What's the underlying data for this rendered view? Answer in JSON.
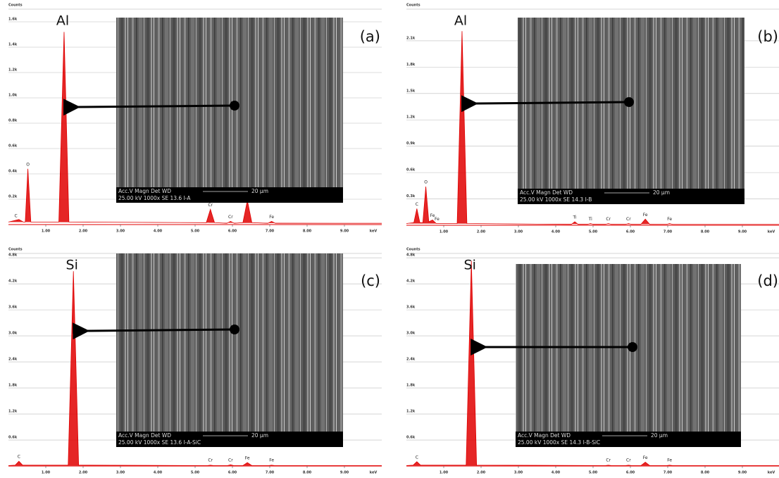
{
  "chart_data": [
    {
      "type": "line",
      "label": "(a)",
      "ylabel": "Counts",
      "xlabel": "keV",
      "color": "#e00000",
      "grid": true,
      "xlim": [
        0,
        10
      ],
      "ylim": [
        0,
        1700
      ],
      "xticks": [
        {
          "value": 1,
          "label": "1.00"
        },
        {
          "value": 2,
          "label": "2.00"
        },
        {
          "value": 3,
          "label": "3.00"
        },
        {
          "value": 4,
          "label": "4.00"
        },
        {
          "value": 5,
          "label": "5.00"
        },
        {
          "value": 6,
          "label": "6.00"
        },
        {
          "value": 7,
          "label": "7.00"
        },
        {
          "value": 8,
          "label": "8.00"
        },
        {
          "value": 9,
          "label": "9.00"
        }
      ],
      "yticks": [
        {
          "value": 200,
          "label": "0.2k"
        },
        {
          "value": 400,
          "label": "0.4k"
        },
        {
          "value": 600,
          "label": "0.6k"
        },
        {
          "value": 800,
          "label": "0.8k"
        },
        {
          "value": 1000,
          "label": "1.0k"
        },
        {
          "value": 1200,
          "label": "1.2k"
        },
        {
          "value": 1400,
          "label": "1.4k"
        },
        {
          "value": 1600,
          "label": "1.6k"
        }
      ],
      "x": [
        0,
        0.28,
        0.4,
        0.45,
        0.52,
        0.6,
        1.35,
        1.49,
        1.62,
        5.3,
        5.41,
        5.52,
        5.85,
        5.95,
        6.05,
        6.28,
        6.4,
        6.52,
        6.95,
        7.05,
        7.15,
        10
      ],
      "values": [
        20,
        40,
        20,
        20,
        440,
        20,
        20,
        1520,
        20,
        15,
        120,
        15,
        10,
        25,
        10,
        15,
        190,
        15,
        10,
        25,
        10,
        10
      ],
      "peak_label": {
        "text": "Al",
        "x": 1.49
      },
      "annotations": [
        {
          "text": "C",
          "x": 0.2
        },
        {
          "text": "O",
          "x": 0.52
        },
        {
          "text": "Cr",
          "x": 5.41
        },
        {
          "text": "Cr",
          "x": 5.95
        },
        {
          "text": "Fe",
          "x": 7.05
        }
      ],
      "inset": {
        "header": "Acc.V    Magn   Det  WD",
        "line": "25.00 kV   1000x  SE   13.6      I-A",
        "scale": "20 µm"
      }
    },
    {
      "type": "line",
      "label": "(b)",
      "ylabel": "Counts",
      "xlabel": "keV",
      "color": "#e00000",
      "grid": true,
      "xlim": [
        0,
        10
      ],
      "ylim": [
        0,
        2460
      ],
      "xticks": [
        {
          "value": 1,
          "label": "1.00"
        },
        {
          "value": 2,
          "label": "2.00"
        },
        {
          "value": 3,
          "label": "3.00"
        },
        {
          "value": 4,
          "label": "4.00"
        },
        {
          "value": 5,
          "label": "5.00"
        },
        {
          "value": 6,
          "label": "6.00"
        },
        {
          "value": 7,
          "label": "7.00"
        },
        {
          "value": 8,
          "label": "8.00"
        },
        {
          "value": 9,
          "label": "9.00"
        }
      ],
      "yticks": [
        {
          "value": 300,
          "label": "0.3k"
        },
        {
          "value": 600,
          "label": "0.6k"
        },
        {
          "value": 900,
          "label": "0.9k"
        },
        {
          "value": 1200,
          "label": "1.2k"
        },
        {
          "value": 1500,
          "label": "1.5k"
        },
        {
          "value": 1800,
          "label": "1.8k"
        },
        {
          "value": 2100,
          "label": "2.1k"
        }
      ],
      "x": [
        0,
        0.2,
        0.28,
        0.36,
        0.44,
        0.52,
        0.6,
        0.7,
        0.8,
        1.36,
        1.49,
        1.62,
        4.42,
        4.51,
        4.6,
        4.85,
        4.93,
        5.01,
        5.33,
        5.41,
        5.49,
        5.87,
        5.95,
        6.03,
        6.28,
        6.4,
        6.52,
        6.97,
        7.05,
        7.13,
        10
      ],
      "values": [
        20,
        30,
        190,
        30,
        30,
        440,
        40,
        60,
        20,
        20,
        2210,
        20,
        10,
        40,
        10,
        10,
        20,
        10,
        10,
        20,
        10,
        10,
        20,
        10,
        10,
        70,
        10,
        10,
        20,
        10,
        10
      ],
      "peak_label": {
        "text": "Al",
        "x": 1.49
      },
      "annotations": [
        {
          "text": "C",
          "x": 0.28
        },
        {
          "text": "O",
          "x": 0.52
        },
        {
          "text": "Fe",
          "x": 0.7
        },
        {
          "text": "Fe",
          "x": 0.82
        },
        {
          "text": "Ti",
          "x": 4.51
        },
        {
          "text": "Ti",
          "x": 4.93
        },
        {
          "text": "Cr",
          "x": 5.41
        },
        {
          "text": "Cr",
          "x": 5.95
        },
        {
          "text": "Fe",
          "x": 6.4
        },
        {
          "text": "Fe",
          "x": 7.05
        }
      ],
      "inset": {
        "header": "Acc.V    Magn   Det  WD",
        "line": "25.00 kV   1000x  SE   14.3      I-B",
        "scale": "20 µm"
      }
    },
    {
      "type": "line",
      "label": "(c)",
      "ylabel": "Counts",
      "xlabel": "keV",
      "color": "#e00000",
      "grid": true,
      "xlim": [
        0,
        10
      ],
      "ylim": [
        0,
        4900
      ],
      "xticks": [
        {
          "value": 1,
          "label": "1.00"
        },
        {
          "value": 2,
          "label": "2.00"
        },
        {
          "value": 3,
          "label": "3.00"
        },
        {
          "value": 4,
          "label": "4.00"
        },
        {
          "value": 5,
          "label": "5.00"
        },
        {
          "value": 6,
          "label": "6.00"
        },
        {
          "value": 7,
          "label": "7.00"
        },
        {
          "value": 8,
          "label": "8.00"
        },
        {
          "value": 9,
          "label": "9.00"
        }
      ],
      "yticks": [
        {
          "value": 600,
          "label": "0.6k"
        },
        {
          "value": 1200,
          "label": "1.2k"
        },
        {
          "value": 1800,
          "label": "1.8k"
        },
        {
          "value": 2400,
          "label": "2.4k"
        },
        {
          "value": 3000,
          "label": "3.0k"
        },
        {
          "value": 3600,
          "label": "3.6k"
        },
        {
          "value": 4200,
          "label": "4.2k"
        },
        {
          "value": 4800,
          "label": "4.8k"
        }
      ],
      "x": [
        0,
        0.18,
        0.28,
        0.38,
        1.6,
        1.74,
        1.88,
        5.33,
        5.41,
        5.49,
        5.87,
        5.95,
        6.03,
        6.28,
        6.4,
        6.52,
        6.97,
        7.05,
        7.13,
        10
      ],
      "values": [
        10,
        20,
        110,
        20,
        20,
        4490,
        20,
        10,
        20,
        10,
        10,
        30,
        10,
        10,
        80,
        10,
        10,
        20,
        10,
        10
      ],
      "peak_label": {
        "text": "Si",
        "x": 1.74
      },
      "annotations": [
        {
          "text": "C",
          "x": 0.28
        },
        {
          "text": "Cr",
          "x": 5.41
        },
        {
          "text": "Cr",
          "x": 5.95
        },
        {
          "text": "Fe",
          "x": 6.4
        },
        {
          "text": "Fe",
          "x": 7.05
        }
      ],
      "inset": {
        "header": "Acc.V    Magn   Det  WD",
        "line": "25.00 kV   1000x  SE   13.6      I-A-SiC",
        "scale": "20 µm"
      }
    },
    {
      "type": "line",
      "label": "(d)",
      "ylabel": "Counts",
      "xlabel": "keV",
      "color": "#e00000",
      "grid": true,
      "xlim": [
        0,
        10
      ],
      "ylim": [
        0,
        4900
      ],
      "xticks": [
        {
          "value": 1,
          "label": "1.00"
        },
        {
          "value": 2,
          "label": "2.00"
        },
        {
          "value": 3,
          "label": "3.00"
        },
        {
          "value": 4,
          "label": "4.00"
        },
        {
          "value": 5,
          "label": "5.00"
        },
        {
          "value": 6,
          "label": "6.00"
        },
        {
          "value": 7,
          "label": "7.00"
        },
        {
          "value": 8,
          "label": "8.00"
        },
        {
          "value": 9,
          "label": "9.00"
        }
      ],
      "yticks": [
        {
          "value": 600,
          "label": "0.6k"
        },
        {
          "value": 1200,
          "label": "1.2k"
        },
        {
          "value": 1800,
          "label": "1.8k"
        },
        {
          "value": 2400,
          "label": "2.4k"
        },
        {
          "value": 3000,
          "label": "3.0k"
        },
        {
          "value": 3600,
          "label": "3.6k"
        },
        {
          "value": 4200,
          "label": "4.2k"
        },
        {
          "value": 4800,
          "label": "4.8k"
        }
      ],
      "x": [
        0,
        0.18,
        0.28,
        0.38,
        1.6,
        1.74,
        1.88,
        5.33,
        5.41,
        5.49,
        5.87,
        5.95,
        6.03,
        6.28,
        6.4,
        6.52,
        6.97,
        7.05,
        7.13,
        10
      ],
      "values": [
        10,
        20,
        100,
        20,
        20,
        4730,
        20,
        10,
        20,
        10,
        10,
        20,
        10,
        10,
        90,
        10,
        10,
        20,
        10,
        10
      ],
      "peak_label": {
        "text": "Si",
        "x": 1.74
      },
      "annotations": [
        {
          "text": "C",
          "x": 0.28
        },
        {
          "text": "Cr",
          "x": 5.41
        },
        {
          "text": "Cr",
          "x": 5.95
        },
        {
          "text": "Fe",
          "x": 6.4
        },
        {
          "text": "Fe",
          "x": 7.05
        }
      ],
      "inset": {
        "header": "Acc.V    Magn   Det  WD",
        "line": "25.00 kV   1000x  SE   14.3      I-B-SiC",
        "scale": "20 µm"
      }
    }
  ]
}
